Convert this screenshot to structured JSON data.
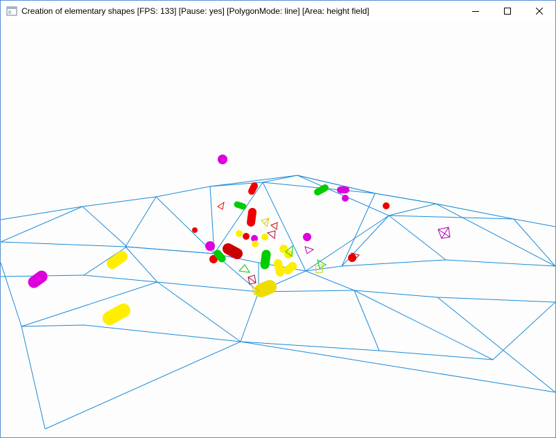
{
  "window": {
    "title": "Creation of elementary shapes [FPS: 133] [Pause: yes] [PolygonMode: line] [Area: height field]",
    "icon": "app-window-icon",
    "controls": {
      "minimize_icon": "minimize-icon",
      "maximize_icon": "maximize-icon",
      "close_icon": "close-icon"
    }
  },
  "scene": {
    "description_icon": "3d-viewport",
    "colors": {
      "mesh": "#1a8ad8",
      "red": "#ff0000",
      "green": "#00dd00",
      "yellow": "#ffee00",
      "magenta": "#ff00ff",
      "background": "#fdfdfd"
    }
  }
}
